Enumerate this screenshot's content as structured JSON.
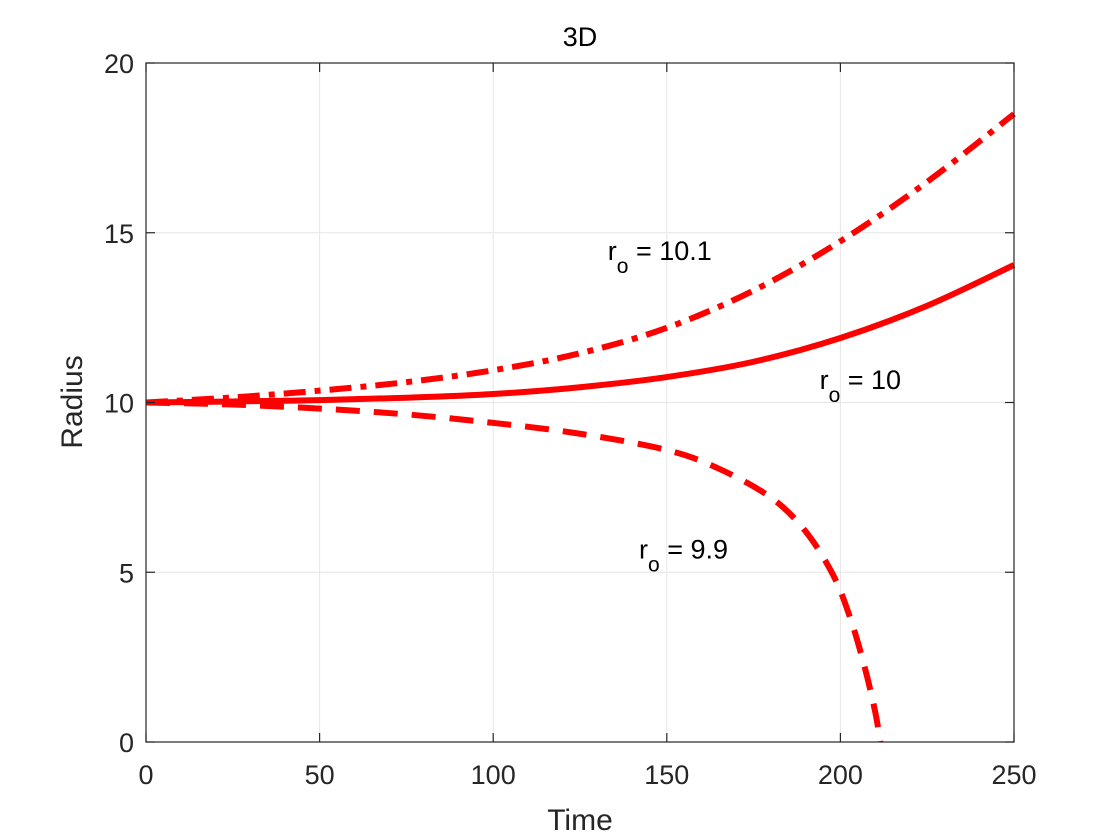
{
  "chart_data": {
    "type": "line",
    "title": "3D",
    "xlabel": "Time",
    "ylabel": "Radius",
    "xlim": [
      0,
      250
    ],
    "ylim": [
      0,
      20
    ],
    "xticks": [
      0,
      50,
      100,
      150,
      200,
      250
    ],
    "yticks": [
      0,
      5,
      10,
      15,
      20
    ],
    "grid": true,
    "colors": {
      "series": "#ff0000",
      "grid": "#e6e6e6",
      "axis": "#262626"
    },
    "series": [
      {
        "linestyle": "dashdot",
        "x": [
          0,
          25,
          50,
          75,
          100,
          125,
          150,
          175,
          200,
          225,
          250
        ],
        "y": [
          10.0,
          10.15,
          10.35,
          10.6,
          10.95,
          11.45,
          12.2,
          13.3,
          14.75,
          16.5,
          18.5
        ]
      },
      {
        "linestyle": "solid",
        "x": [
          0,
          25,
          50,
          75,
          100,
          125,
          150,
          175,
          200,
          225,
          250
        ],
        "y": [
          10.0,
          10.03,
          10.07,
          10.14,
          10.25,
          10.45,
          10.75,
          11.2,
          11.9,
          12.85,
          14.05
        ]
      },
      {
        "linestyle": "dashed",
        "x": [
          0,
          25,
          50,
          75,
          100,
          125,
          150,
          165,
          180,
          190,
          198,
          203,
          207,
          210,
          211.5
        ],
        "y": [
          10.0,
          9.94,
          9.82,
          9.65,
          9.4,
          9.08,
          8.6,
          8.05,
          7.2,
          6.2,
          4.9,
          3.6,
          2.2,
          0.9,
          0.0
        ]
      }
    ],
    "annotations": [
      {
        "base": "r",
        "sub": "o",
        "text": " = 10.1",
        "x": 133,
        "y": 14.2
      },
      {
        "base": "r",
        "sub": "o",
        "text": " = 10",
        "x": 194,
        "y": 10.4
      },
      {
        "base": "r",
        "sub": "o",
        "text": " = 9.9",
        "x": 142,
        "y": 5.4
      }
    ]
  }
}
